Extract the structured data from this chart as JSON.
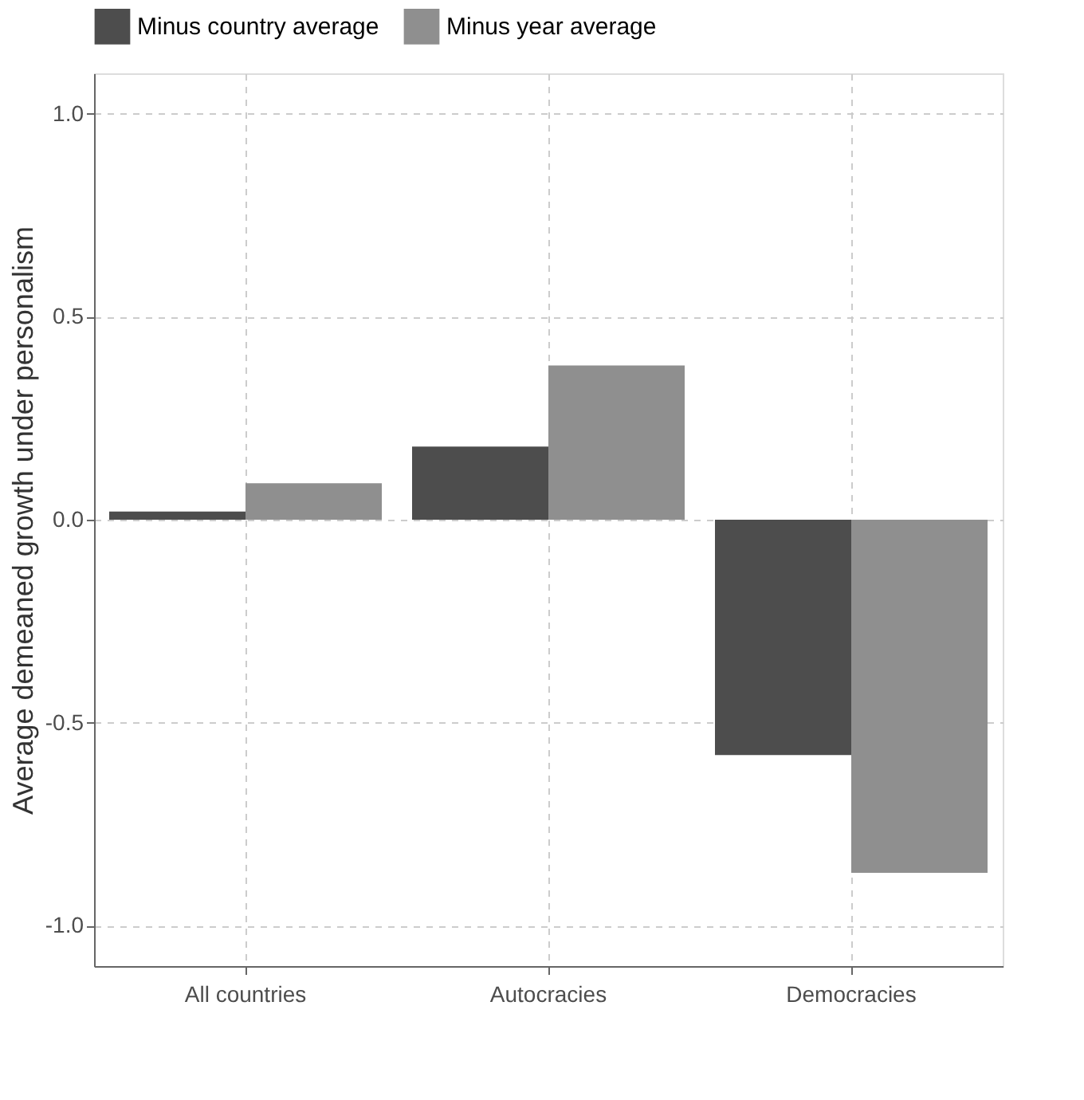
{
  "chart_data": {
    "type": "bar",
    "ylabel": "Average demeaned growth under personalism",
    "categories": [
      "All countries",
      "Autocracies",
      "Democracies"
    ],
    "series": [
      {
        "name": "Minus country average",
        "color": "#4d4d4d",
        "values": [
          0.02,
          0.18,
          -0.58
        ]
      },
      {
        "name": "Minus year average",
        "color": "#8f8f8f",
        "values": [
          0.09,
          0.38,
          -0.87
        ]
      }
    ],
    "ylim": [
      -1.1,
      1.1
    ],
    "yticks": [
      {
        "value": -1,
        "label": "-1.0"
      },
      {
        "value": -0.5,
        "label": "-0.5"
      },
      {
        "value": 0,
        "label": "0.0"
      },
      {
        "value": 0.5,
        "label": "0.5"
      },
      {
        "value": 1,
        "label": "1.0"
      }
    ],
    "grid": true,
    "legend": "top"
  }
}
